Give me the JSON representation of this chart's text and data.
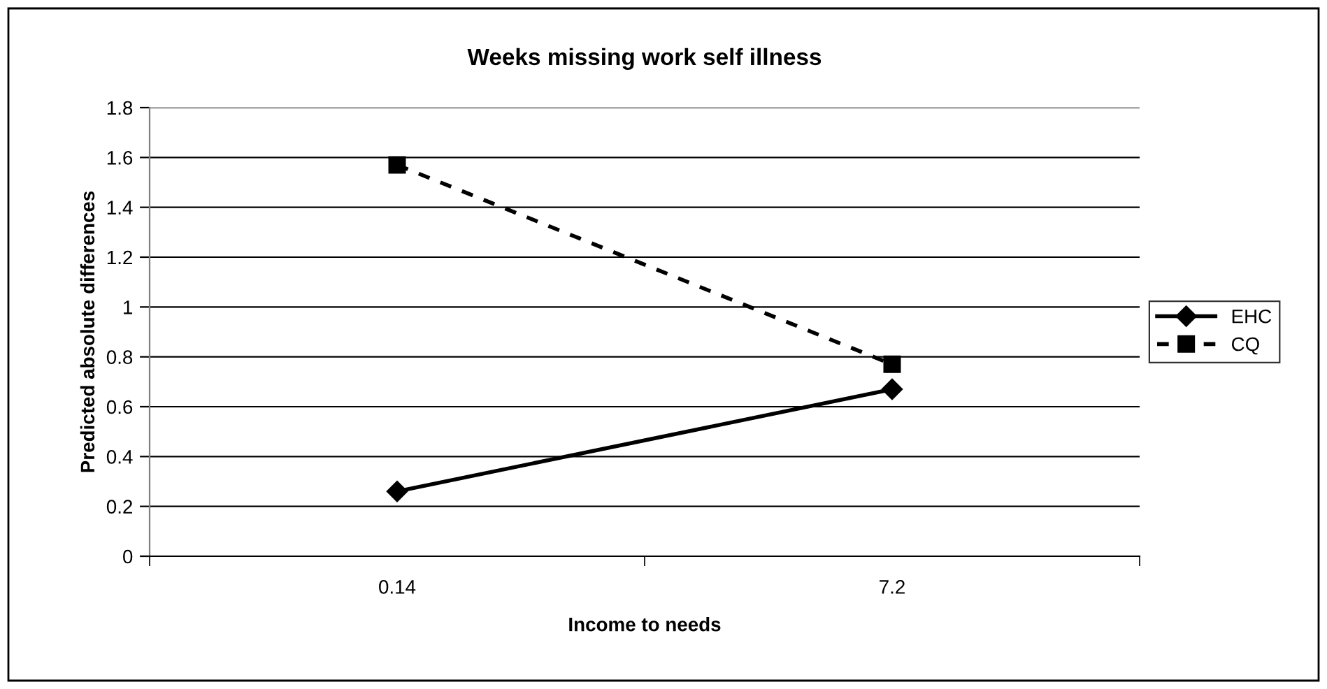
{
  "chart_data": {
    "type": "line",
    "title": "Weeks missing work self illness",
    "xlabel": "Income to needs",
    "ylabel": "Predicted absolute differences",
    "categories": [
      "0.14",
      "7.2"
    ],
    "series": [
      {
        "name": "EHC",
        "color": "#000000",
        "values": [
          0.26,
          0.67
        ],
        "marker": "diamond",
        "line_style": "solid"
      },
      {
        "name": "CQ",
        "color": "#000000",
        "values": [
          1.57,
          0.77
        ],
        "marker": "square",
        "line_style": "dashed"
      }
    ],
    "ylim": [
      0,
      1.8
    ],
    "yticks": [
      0,
      0.2,
      0.4,
      0.6,
      0.8,
      1,
      1.2,
      1.4,
      1.6,
      1.8
    ],
    "grid": "y",
    "legend": "right"
  }
}
